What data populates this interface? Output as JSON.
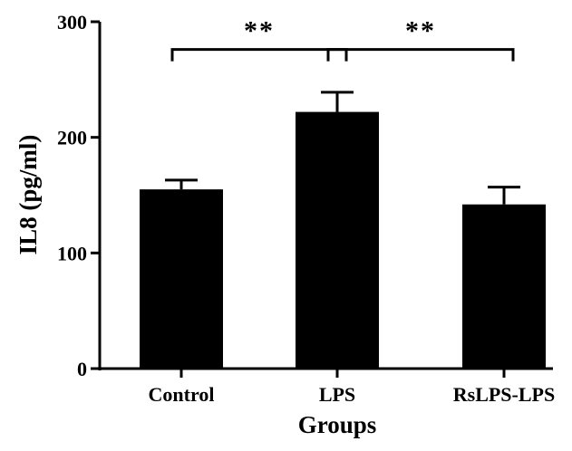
{
  "chart_data": {
    "type": "bar",
    "xlabel": "Groups",
    "ylabel": "IL8 (pg/ml)",
    "categories": [
      "Control",
      "LPS",
      "RsLPS-LPS"
    ],
    "values": [
      155,
      222,
      142
    ],
    "errors": [
      8,
      17,
      15
    ],
    "ylim": [
      0,
      300
    ],
    "yticks": [
      {
        "value": 0,
        "label": "0"
      },
      {
        "value": 100,
        "label": "100"
      },
      {
        "value": 200,
        "label": "200"
      },
      {
        "value": 300,
        "label": "300"
      }
    ],
    "significance": [
      {
        "from": 0,
        "to": 1,
        "label": "**",
        "y": 276
      },
      {
        "from": 1,
        "to": 2,
        "label": "**",
        "y": 276
      }
    ],
    "grid": false,
    "colors": {
      "bar": "#000000",
      "axis": "#000000"
    }
  }
}
